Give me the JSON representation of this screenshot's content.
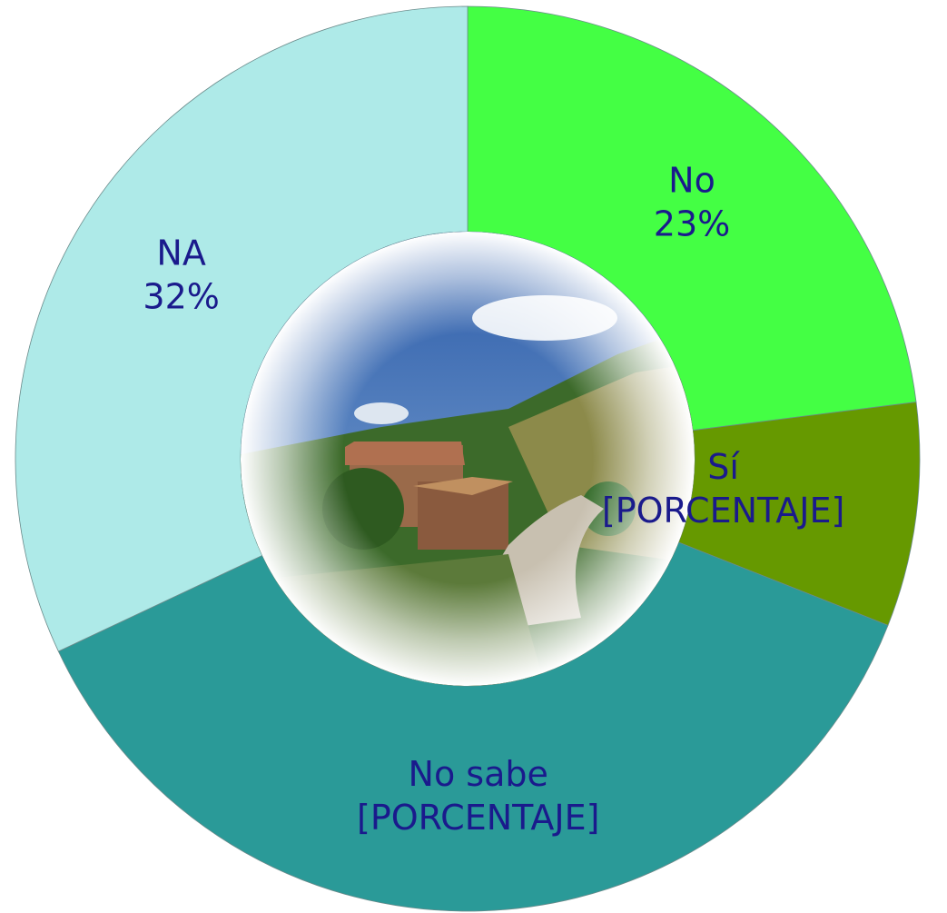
{
  "chart_data": {
    "type": "donut",
    "categories": [
      "No",
      "Sí",
      "No sabe",
      "NA"
    ],
    "values": [
      23,
      8,
      37,
      32
    ],
    "value_labels": [
      "23%",
      "[PORCENTAJE]",
      "[PORCENTAJE]",
      "32%"
    ],
    "colors": [
      "#44ff44",
      "#669900",
      "#2a9a98",
      "#aeeae8"
    ]
  }
}
